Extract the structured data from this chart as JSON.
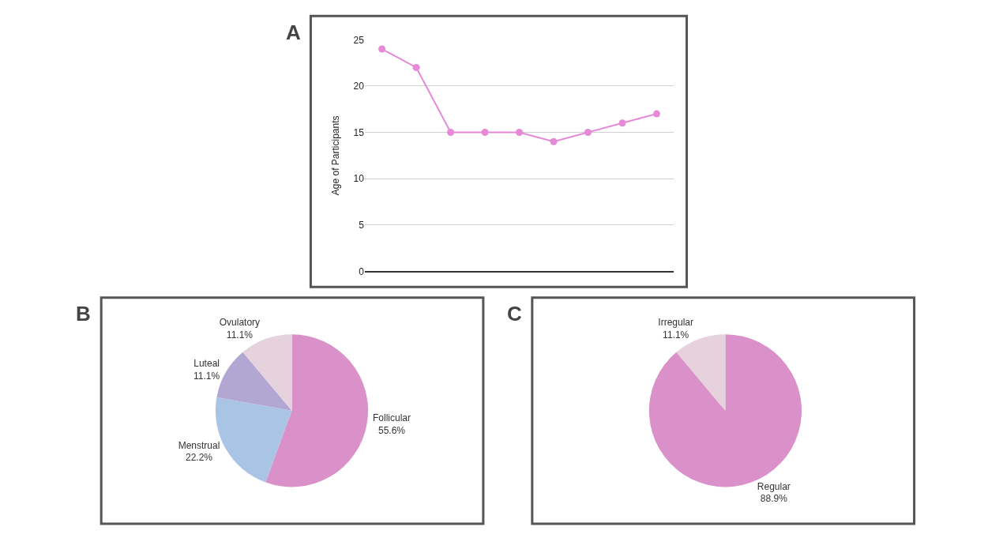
{
  "chart_data": [
    {
      "type": "line",
      "title": "A",
      "ylabel": "Age of Participants",
      "categories": [
        null,
        null,
        null,
        null,
        null,
        null,
        null,
        null,
        null
      ],
      "series": [
        {
          "color": "#e68ad8",
          "values": [
            24,
            22,
            15,
            15,
            15,
            14,
            15,
            16,
            17
          ]
        }
      ],
      "ylim": [
        0,
        25
      ],
      "yticks": [
        0,
        5,
        10,
        15,
        20,
        25
      ],
      "grid": "y",
      "marker": "circle",
      "line_style": "solid"
    },
    {
      "type": "pie",
      "title": "B",
      "categories": [
        "Follicular",
        "Menstrual",
        "Luteal",
        "Ovulatory"
      ],
      "values": [
        55.6,
        22.2,
        11.1,
        11.1
      ],
      "value_labels": [
        "55.6%",
        "22.2%",
        "11.1%",
        "11.1%"
      ],
      "colors": [
        "#da91c9",
        "#a9c4e4",
        "#b2a7d3",
        "#e5d2dc"
      ]
    },
    {
      "type": "pie",
      "title": "C",
      "categories": [
        "Regular",
        "Irregular"
      ],
      "values": [
        88.9,
        11.1
      ],
      "value_labels": [
        "88.9%",
        "11.1%"
      ],
      "colors": [
        "#da91c9",
        "#e5d2dc"
      ]
    }
  ]
}
